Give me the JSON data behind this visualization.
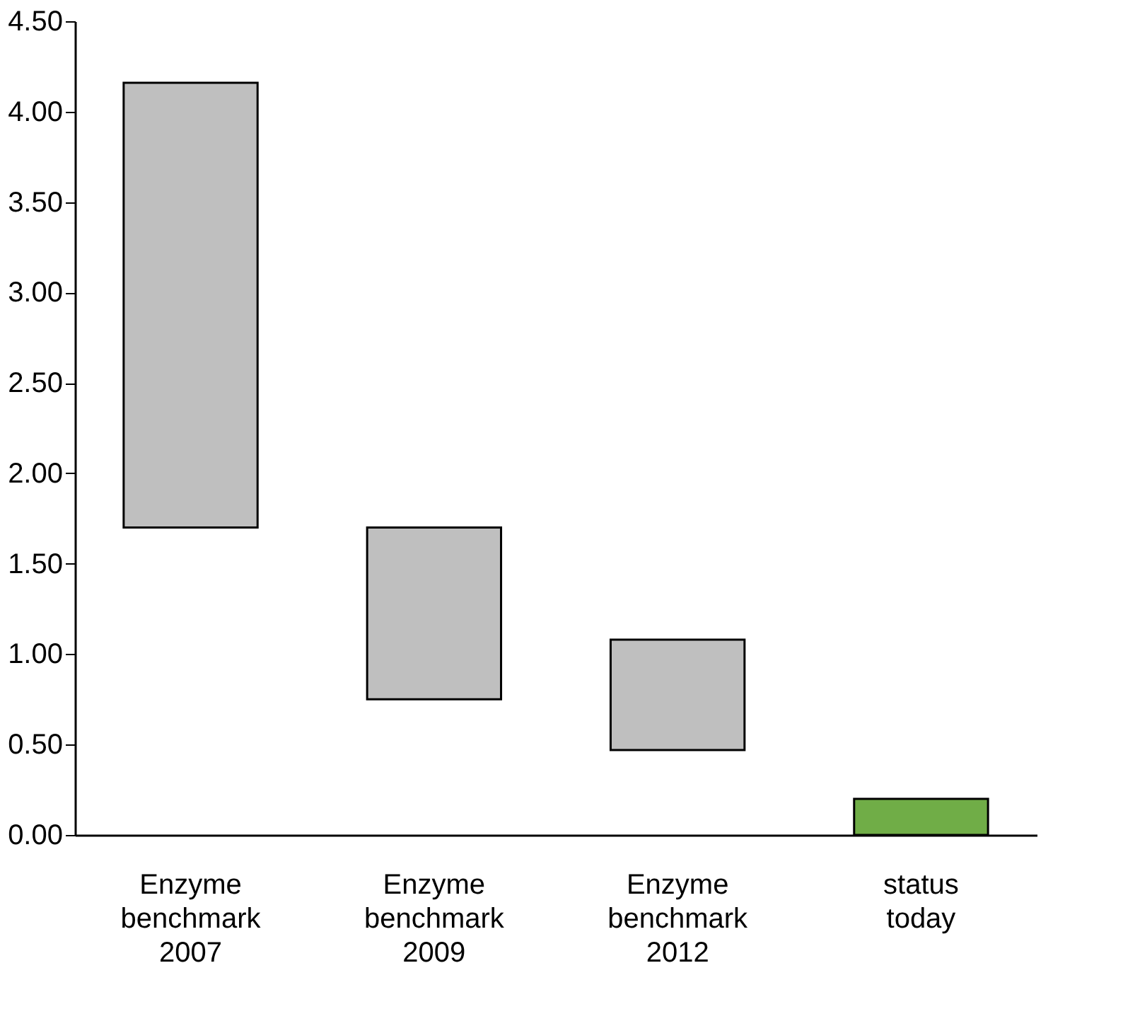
{
  "chart_data": {
    "type": "bar",
    "categories": [
      "Enzyme benchmark 2007",
      "Enzyme benchmark 2009",
      "Enzyme benchmark 2012",
      "status today"
    ],
    "base": [
      1.7,
      0.75,
      0.47,
      0
    ],
    "values": [
      2.46,
      0.95,
      0.61,
      0.2
    ],
    "colors": [
      "#bfbfbf",
      "#bfbfbf",
      "#bfbfbf",
      "#70ad47"
    ],
    "ylim": [
      0,
      4.5
    ],
    "yticks": [
      {
        "value": 0,
        "label": "0.00"
      },
      {
        "value": 0.5,
        "label": "0.50"
      },
      {
        "value": 1,
        "label": "1.00"
      },
      {
        "value": 1.5,
        "label": "1.50"
      },
      {
        "value": 2,
        "label": "2.00"
      },
      {
        "value": 2.5,
        "label": "2.50"
      },
      {
        "value": 3,
        "label": "3.00"
      },
      {
        "value": 3.5,
        "label": "3.50"
      },
      {
        "value": 4,
        "label": "4.00"
      },
      {
        "value": 4.5,
        "label": "4.50"
      }
    ],
    "grid": false
  }
}
